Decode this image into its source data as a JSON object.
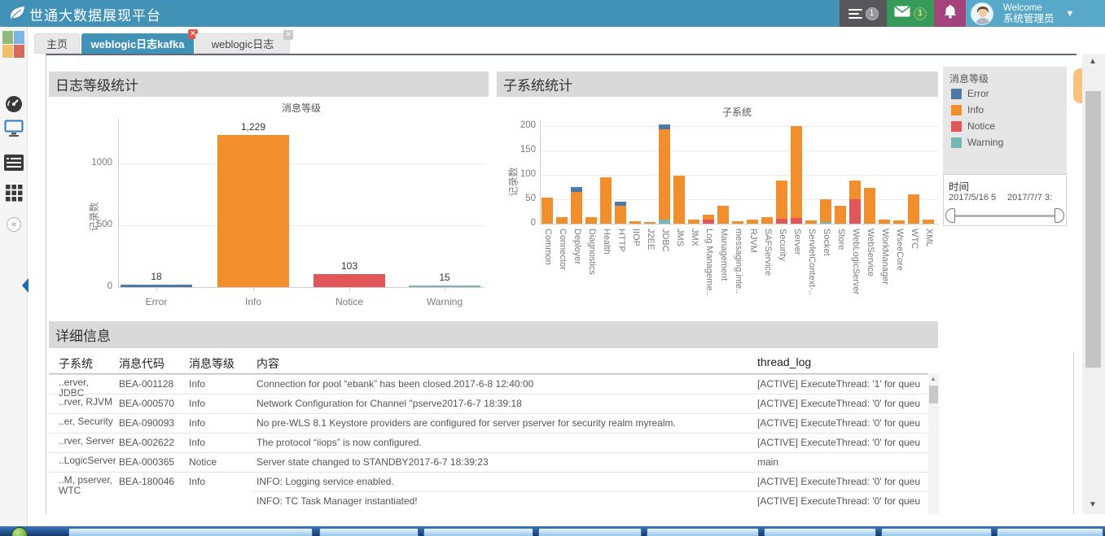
{
  "header": {
    "title": "世通大数据展现平台",
    "menu_badge": "1",
    "mail_badge": "1",
    "welcome_line1": "Welcome",
    "welcome_line2": "系统管理员"
  },
  "sidebar": {
    "icons": [
      "logo-squares",
      "dashboard-gauge-icon",
      "monitor-icon",
      "log-list-icon",
      "grid-icon",
      "collapse-icon"
    ],
    "collapse_glyph": "«"
  },
  "tabs": [
    {
      "label": "主页",
      "active": false,
      "closable": false
    },
    {
      "label": "weblogic日志kafka",
      "active": true,
      "closable": true
    },
    {
      "label": "weblogic日志",
      "active": false,
      "closable": true
    }
  ],
  "panels": {
    "log_level_title": "日志等级统计",
    "subsystem_title": "子系统统计",
    "detail_title": "详细信息"
  },
  "colors": {
    "header_bg": "#4292b8",
    "error": "#4e79a7",
    "info": "#f28e2b",
    "notice": "#e15759",
    "warning": "#76b7b2"
  },
  "chart_data": [
    {
      "type": "bar",
      "title": "消息等级",
      "ylabel": "记录数",
      "categories": [
        "Error",
        "Info",
        "Notice",
        "Warning"
      ],
      "values": [
        18,
        1229,
        103,
        15
      ],
      "value_labels": [
        "18",
        "1,229",
        "103",
        "15"
      ],
      "colors": [
        "#4e79a7",
        "#f28e2b",
        "#e15759",
        "#76b7b2"
      ],
      "yticks": [
        0,
        500,
        1000
      ],
      "ylim": [
        0,
        1362
      ],
      "grid": true,
      "legend_position": "none"
    },
    {
      "type": "stacked-bar",
      "title": "子系统",
      "ylabel": "记录数",
      "yticks": [
        0,
        50,
        100,
        150,
        200
      ],
      "ylim": [
        0,
        212
      ],
      "grid": true,
      "legend_position": "right",
      "bars": [
        {
          "category": "Common",
          "segments": [
            {
              "level": "info",
              "value": 53
            }
          ]
        },
        {
          "category": "Connector",
          "segments": [
            {
              "level": "info",
              "value": 13
            }
          ]
        },
        {
          "category": "Deployer",
          "segments": [
            {
              "level": "info",
              "value": 65
            },
            {
              "level": "error",
              "value": 10
            }
          ]
        },
        {
          "category": "Diagnostics",
          "segments": [
            {
              "level": "info",
              "value": 13
            }
          ]
        },
        {
          "category": "Health",
          "segments": [
            {
              "level": "info",
              "value": 95
            }
          ]
        },
        {
          "category": "HTTP",
          "segments": [
            {
              "level": "info",
              "value": 37
            },
            {
              "level": "error",
              "value": 8
            }
          ]
        },
        {
          "category": "IIOP",
          "segments": [
            {
              "level": "info",
              "value": 5
            }
          ]
        },
        {
          "category": "J2EE",
          "segments": [
            {
              "level": "info",
              "value": 4
            }
          ]
        },
        {
          "category": "JDBC",
          "segments": [
            {
              "level": "warning",
              "value": 8
            },
            {
              "level": "info",
              "value": 185
            },
            {
              "level": "error",
              "value": 10
            }
          ]
        },
        {
          "category": "JMS",
          "segments": [
            {
              "level": "info",
              "value": 98
            }
          ]
        },
        {
          "category": "JMX",
          "segments": [
            {
              "level": "info",
              "value": 8
            }
          ]
        },
        {
          "category": "Log Manageme..",
          "segments": [
            {
              "level": "notice",
              "value": 8
            },
            {
              "level": "info",
              "value": 10
            }
          ]
        },
        {
          "category": "Management",
          "segments": [
            {
              "level": "info",
              "value": 37
            }
          ]
        },
        {
          "category": "messaging.inte..",
          "segments": [
            {
              "level": "info",
              "value": 5
            }
          ]
        },
        {
          "category": "RJVM",
          "segments": [
            {
              "level": "info",
              "value": 8
            }
          ]
        },
        {
          "category": "SAFService",
          "segments": [
            {
              "level": "info",
              "value": 13
            }
          ]
        },
        {
          "category": "Security",
          "segments": [
            {
              "level": "notice",
              "value": 10
            },
            {
              "level": "info",
              "value": 78
            }
          ]
        },
        {
          "category": "Server",
          "segments": [
            {
              "level": "notice",
              "value": 12
            },
            {
              "level": "info",
              "value": 188
            }
          ]
        },
        {
          "category": "ServletContext-..",
          "segments": [
            {
              "level": "info",
              "value": 7
            }
          ]
        },
        {
          "category": "Socket",
          "segments": [
            {
              "level": "warning",
              "value": 4
            },
            {
              "level": "info",
              "value": 46
            }
          ]
        },
        {
          "category": "Store",
          "segments": [
            {
              "level": "info",
              "value": 37
            }
          ]
        },
        {
          "category": "WebLogicServer",
          "segments": [
            {
              "level": "notice",
              "value": 50
            },
            {
              "level": "info",
              "value": 38
            }
          ]
        },
        {
          "category": "WebService",
          "segments": [
            {
              "level": "info",
              "value": 73
            }
          ]
        },
        {
          "category": "WorkManager",
          "segments": [
            {
              "level": "info",
              "value": 8
            }
          ]
        },
        {
          "category": "WseeCore",
          "segments": [
            {
              "level": "info",
              "value": 7
            }
          ]
        },
        {
          "category": "WTC",
          "segments": [
            {
              "level": "info",
              "value": 60
            }
          ]
        },
        {
          "category": "XML",
          "segments": [
            {
              "level": "info",
              "value": 8
            }
          ]
        }
      ]
    }
  ],
  "legend": {
    "title": "消息等级",
    "items": [
      {
        "label": "Error",
        "color": "#4e79a7"
      },
      {
        "label": "Info",
        "color": "#f28e2b"
      },
      {
        "label": "Notice",
        "color": "#e15759"
      },
      {
        "label": "Warning",
        "color": "#76b7b2"
      }
    ]
  },
  "time_filter": {
    "title": "时间",
    "start": "2017/5/16 5",
    "end": "2017/7/7 3:"
  },
  "table": {
    "headers": [
      "子系统",
      "消息代码",
      "消息等级",
      "内容",
      "thread_log"
    ],
    "rows": [
      [
        "..erver, JDBC",
        "BEA-001128",
        "Info",
        "Connection for pool “ebank” has been closed.2017-6-8 12:40:00",
        "[ACTIVE] ExecuteThread: '1' for queu"
      ],
      [
        "..rver, RJVM",
        "BEA-000570",
        "Info",
        "Network Configuration for Channel \"pserve2017-6-7 18:39:18",
        "[ACTIVE] ExecuteThread: '0' for queu"
      ],
      [
        "..er, Security",
        "BEA-090093",
        "Info",
        "No pre-WLS 8.1 Keystore providers are configured for server pserver for security realm myrealm.",
        "[ACTIVE] ExecuteThread: '0' for queu"
      ],
      [
        "..rver, Server",
        "BEA-002622",
        "Info",
        "The protocol “iiops” is now configured.",
        "[ACTIVE] ExecuteThread: '0' for queu"
      ],
      [
        "..LogicServer",
        "BEA-000365",
        "Notice",
        "Server state changed to STANDBY2017-6-7 18:39:23",
        "main"
      ],
      [
        "..M, pserver, WTC",
        "BEA-180046",
        "Info",
        "INFO: Logging service enabled.",
        "[ACTIVE] ExecuteThread: '0' for queu"
      ],
      [
        "",
        "",
        "",
        "INFO: TC Task Manager instantiated!",
        "[ACTIVE] ExecuteThread: '0' for queu"
      ]
    ]
  }
}
